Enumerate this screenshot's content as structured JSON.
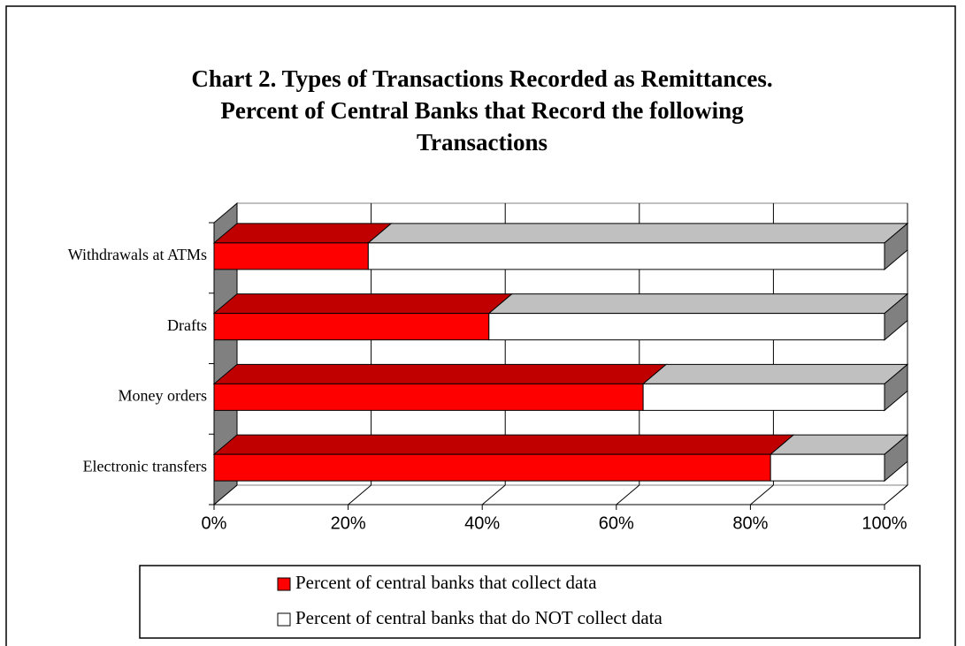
{
  "chart_data": {
    "type": "bar3d_stacked_horizontal",
    "title": [
      "Chart 2. Types of Transactions Recorded as Remittances.",
      "Percent of Central Banks that Record the following",
      "Transactions"
    ],
    "categories": [
      "Withdrawals at ATMs",
      "Drafts",
      "Money orders",
      "Electronic transfers"
    ],
    "series": [
      {
        "name": "Percent of central banks that collect data",
        "color": "#ff0000",
        "top_color": "#c00000",
        "values": [
          23,
          41,
          64,
          83
        ]
      },
      {
        "name": "Percent of central banks that do NOT collect data",
        "color": "#ffffff",
        "top_color": "#c0c0c0",
        "values": [
          77,
          59,
          36,
          17
        ]
      }
    ],
    "xlim": [
      0,
      100
    ],
    "xticks": [
      {
        "value": 0,
        "label": "0%"
      },
      {
        "value": 20,
        "label": "20%"
      },
      {
        "value": 40,
        "label": "40%"
      },
      {
        "value": 60,
        "label": "60%"
      },
      {
        "value": 80,
        "label": "80%"
      },
      {
        "value": 100,
        "label": "100%"
      }
    ],
    "grid": true
  }
}
